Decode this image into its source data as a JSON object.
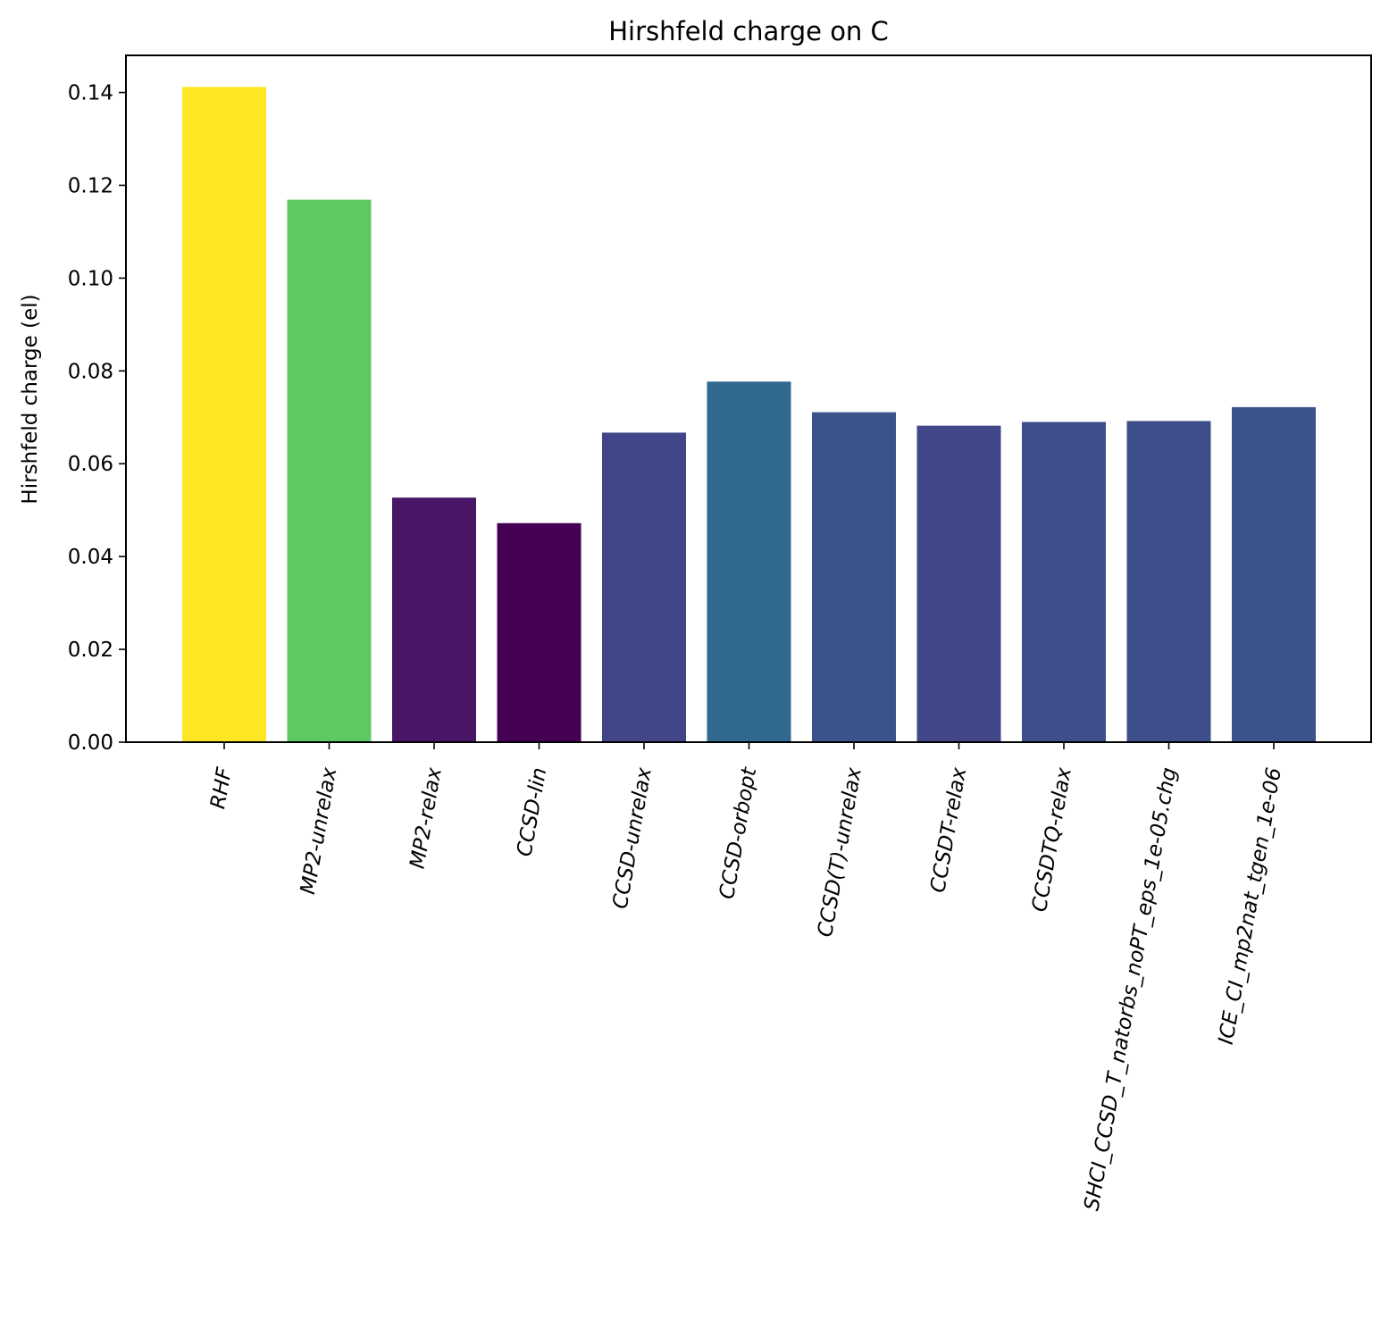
{
  "chart_data": {
    "type": "bar",
    "title": "Hirshfeld charge on C",
    "xlabel": "",
    "ylabel": "Hirshfeld charge (el)",
    "ylim": [
      0,
      0.148
    ],
    "yticks": [
      "0.00",
      "0.02",
      "0.04",
      "0.06",
      "0.08",
      "0.10",
      "0.12",
      "0.14"
    ],
    "grid": false,
    "categories": [
      "RHF",
      "MP2-unrelax",
      "MP2-relax",
      "CCSD-lin",
      "CCSD-unrelax",
      "CCSD-orbopt",
      "CCSD(T)-unrelax",
      "CCSDT-relax",
      "CCSDTQ-relax",
      "SHCI_CCSD_T_natorbs_noPT_eps_1e-05.chg",
      "ICE_CI_mp2nat_tgen_1e-06"
    ],
    "values": [
      0.1412,
      0.1169,
      0.0527,
      0.0472,
      0.0667,
      0.0777,
      0.0711,
      0.0682,
      0.069,
      0.0692,
      0.0722
    ],
    "colors": [
      "#fde725",
      "#5ec962",
      "#481567",
      "#440154",
      "#404688",
      "#31688e",
      "#3b528b",
      "#404688",
      "#3d4e8a",
      "#3d4e8a",
      "#3b528b"
    ]
  }
}
